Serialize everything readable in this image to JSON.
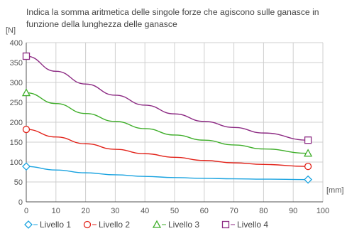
{
  "chart_data": {
    "type": "line",
    "title_lines": [
      "Indica la somma aritmetica delle singole forze che agiscono sulle ganasce in",
      "funzione della lunghezza delle ganasce"
    ],
    "xlabel": "[mm]",
    "ylabel": "[N]",
    "xlim": [
      0,
      100
    ],
    "ylim": [
      0,
      400
    ],
    "xticks": [
      0,
      10,
      20,
      30,
      40,
      50,
      60,
      70,
      80,
      90,
      100
    ],
    "yticks": [
      0,
      50,
      100,
      150,
      200,
      250,
      300,
      350,
      400
    ],
    "grid": true,
    "legend_position": "bottom-left",
    "x": [
      0,
      10,
      20,
      30,
      40,
      50,
      60,
      70,
      80,
      95
    ],
    "series": [
      {
        "name": "Livello 1",
        "marker": "diamond",
        "color": "#1aa3e0",
        "values": [
          89,
          80,
          73,
          68,
          64,
          61,
          59,
          58,
          57,
          56
        ]
      },
      {
        "name": "Livello 2",
        "marker": "circle",
        "color": "#e2231a",
        "values": [
          182,
          163,
          146,
          132,
          121,
          112,
          104,
          98,
          94,
          89
        ]
      },
      {
        "name": "Livello 3",
        "marker": "triangle",
        "color": "#3fae2a",
        "values": [
          274,
          247,
          222,
          202,
          184,
          168,
          155,
          143,
          133,
          122
        ]
      },
      {
        "name": "Livello 4",
        "marker": "square",
        "color": "#8c2a83",
        "values": [
          366,
          328,
          296,
          268,
          243,
          221,
          202,
          187,
          173,
          155
        ]
      }
    ]
  }
}
